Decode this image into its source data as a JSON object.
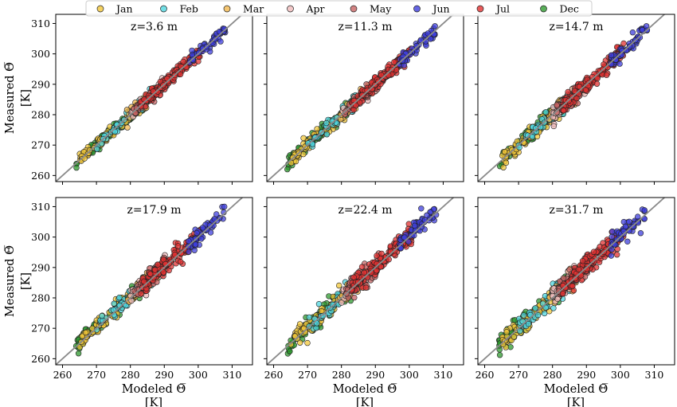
{
  "legend": [
    {
      "label": "Jan",
      "color": "#f2c73a"
    },
    {
      "label": "Feb",
      "color": "#4fd6df"
    },
    {
      "label": "Mar",
      "color": "#f3b84f"
    },
    {
      "label": "Apr",
      "color": "#f0bcbc"
    },
    {
      "label": "May",
      "color": "#c76464"
    },
    {
      "label": "Jun",
      "color": "#3f3fdc"
    },
    {
      "label": "Jul",
      "color": "#e23232"
    },
    {
      "label": "Dec",
      "color": "#2f9a2f"
    }
  ],
  "axes": {
    "ylabel": "Measured Θ̅",
    "yunit": "[K]",
    "xlabel": "Modeled Θ̅",
    "xunit": "[K]"
  },
  "chart_data": {
    "type": "scatter",
    "layout": "2x3 grid of scatter panels with 1:1 reference line",
    "xlim": [
      258,
      316
    ],
    "ylim": [
      258,
      313
    ],
    "xticks": [
      260,
      270,
      280,
      290,
      300,
      310
    ],
    "yticks": [
      260,
      270,
      280,
      290,
      300,
      310
    ],
    "reference_line": "y = x (gray)",
    "grid": false,
    "legend_placement": "top-center, horizontal",
    "panels": [
      {
        "title": "z=3.6 m"
      },
      {
        "title": "z=11.3 m"
      },
      {
        "title": "z=14.7 m"
      },
      {
        "title": "z=17.9 m"
      },
      {
        "title": "z=22.4 m"
      },
      {
        "title": "z=31.7 m"
      }
    ],
    "series_ranges": [
      {
        "name": "Dec",
        "x_range": [
          264,
          284
        ],
        "approx_y_equals_x": true
      },
      {
        "name": "Jan",
        "x_range": [
          265,
          286
        ],
        "approx_y_equals_x": true
      },
      {
        "name": "Feb",
        "x_range": [
          270,
          287
        ],
        "approx_y_equals_x": true
      },
      {
        "name": "Mar",
        "x_range": [
          279,
          290
        ],
        "approx_y_equals_x": true
      },
      {
        "name": "Apr",
        "x_range": [
          280,
          291
        ],
        "approx_y_equals_x": true
      },
      {
        "name": "May",
        "x_range": [
          281,
          291
        ],
        "approx_y_equals_x": true
      },
      {
        "name": "Jul",
        "x_range": [
          283,
          301
        ],
        "approx_y_equals_x": true
      },
      {
        "name": "Jun",
        "x_range": [
          297,
          308
        ],
        "approx_y_equals_x": true
      }
    ]
  }
}
